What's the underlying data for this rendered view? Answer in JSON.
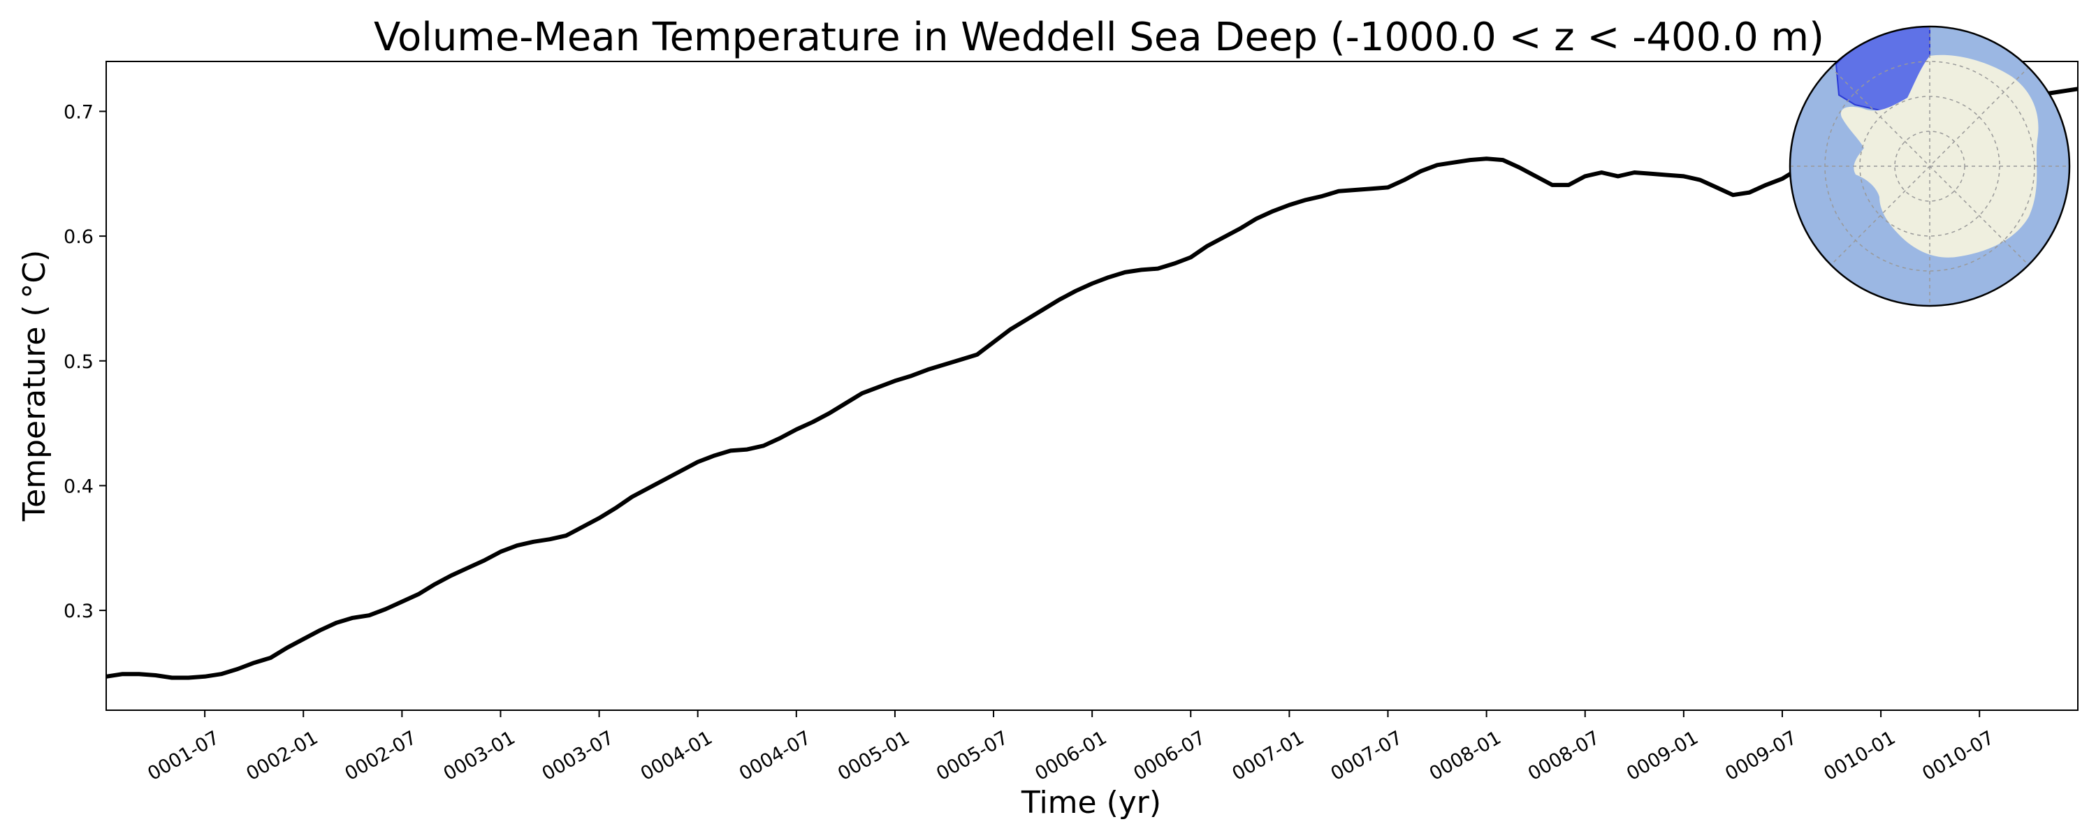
{
  "chart_data": {
    "type": "line",
    "title": "Volume-Mean Temperature in Weddell Sea Deep (-1000.0 < z < -400.0 m)",
    "xlabel": "Time (yr)",
    "ylabel": "Temperature ( °C)",
    "x_range": [
      "0001-01-01",
      "0010-12-31"
    ],
    "ylim": [
      0.22,
      0.74
    ],
    "xticks": [
      "0001-07",
      "0002-01",
      "0002-07",
      "0003-01",
      "0003-07",
      "0004-01",
      "0004-07",
      "0005-01",
      "0005-07",
      "0006-01",
      "0006-07",
      "0007-01",
      "0007-07",
      "0008-01",
      "0008-07",
      "0009-01",
      "0009-07",
      "0010-01",
      "0010-07"
    ],
    "yticks": [
      0.3,
      0.4,
      0.5,
      0.6,
      0.7
    ],
    "grid": false,
    "series": [
      {
        "color": "#000000",
        "x": [
          "0001-01-01",
          "0001-02-01",
          "0001-03-01",
          "0001-04-01",
          "0001-05-01",
          "0001-06-01",
          "0001-07-01",
          "0001-08-01",
          "0001-09-01",
          "0001-10-01",
          "0001-11-01",
          "0001-12-01",
          "0002-01-01",
          "0002-02-01",
          "0002-03-01",
          "0002-04-01",
          "0002-05-01",
          "0002-06-01",
          "0002-07-01",
          "0002-08-01",
          "0002-09-01",
          "0002-10-01",
          "0002-11-01",
          "0002-12-01",
          "0003-01-01",
          "0003-02-01",
          "0003-03-01",
          "0003-04-01",
          "0003-05-01",
          "0003-06-01",
          "0003-07-01",
          "0003-08-01",
          "0003-09-01",
          "0003-10-01",
          "0003-11-01",
          "0003-12-01",
          "0004-01-01",
          "0004-02-01",
          "0004-03-01",
          "0004-04-01",
          "0004-05-01",
          "0004-06-01",
          "0004-07-01",
          "0004-08-01",
          "0004-09-01",
          "0004-10-01",
          "0004-11-01",
          "0004-12-01",
          "0005-01-01",
          "0005-02-01",
          "0005-03-01",
          "0005-04-01",
          "0005-05-01",
          "0005-06-01",
          "0005-07-01",
          "0005-08-01",
          "0005-09-01",
          "0005-10-01",
          "0005-11-01",
          "0005-12-01",
          "0006-01-01",
          "0006-02-01",
          "0006-03-01",
          "0006-04-01",
          "0006-05-01",
          "0006-06-01",
          "0006-07-01",
          "0006-08-01",
          "0006-09-01",
          "0006-10-01",
          "0006-11-01",
          "0006-12-01",
          "0007-01-01",
          "0007-02-01",
          "0007-03-01",
          "0007-04-01",
          "0007-05-01",
          "0007-06-01",
          "0007-07-01",
          "0007-08-01",
          "0007-09-01",
          "0007-10-01",
          "0007-11-01",
          "0007-12-01",
          "0008-01-01",
          "0008-02-01",
          "0008-03-01",
          "0008-04-01",
          "0008-05-01",
          "0008-06-01",
          "0008-07-01",
          "0008-08-01",
          "0008-09-01",
          "0008-10-01",
          "0008-11-01",
          "0008-12-01",
          "0009-01-01",
          "0009-02-01",
          "0009-03-01",
          "0009-04-01",
          "0009-05-01",
          "0009-06-01",
          "0009-07-01",
          "0009-08-01",
          "0009-09-01",
          "0009-10-01",
          "0009-11-01",
          "0009-12-01",
          "0010-01-01",
          "0010-02-01",
          "0010-03-01",
          "0010-04-01",
          "0010-05-01",
          "0010-06-01",
          "0010-07-01",
          "0010-08-01",
          "0010-09-01",
          "0010-10-01",
          "0010-11-01",
          "0010-12-01",
          "0010-12-31"
        ],
        "y": [
          0.247,
          0.249,
          0.249,
          0.248,
          0.246,
          0.246,
          0.247,
          0.249,
          0.253,
          0.258,
          0.262,
          0.27,
          0.277,
          0.284,
          0.29,
          0.294,
          0.296,
          0.301,
          0.307,
          0.313,
          0.321,
          0.328,
          0.334,
          0.34,
          0.347,
          0.352,
          0.355,
          0.357,
          0.36,
          0.367,
          0.374,
          0.382,
          0.391,
          0.398,
          0.405,
          0.412,
          0.419,
          0.424,
          0.428,
          0.429,
          0.432,
          0.438,
          0.445,
          0.451,
          0.458,
          0.466,
          0.474,
          0.479,
          0.484,
          0.488,
          0.493,
          0.497,
          0.501,
          0.505,
          0.515,
          0.525,
          0.533,
          0.541,
          0.549,
          0.556,
          0.562,
          0.567,
          0.571,
          0.573,
          0.574,
          0.578,
          0.583,
          0.592,
          0.599,
          0.606,
          0.614,
          0.62,
          0.625,
          0.629,
          0.632,
          0.636,
          0.637,
          0.638,
          0.639,
          0.645,
          0.652,
          0.657,
          0.659,
          0.661,
          0.662,
          0.661,
          0.655,
          0.648,
          0.641,
          0.641,
          0.648,
          0.651,
          0.648,
          0.651,
          0.65,
          0.649,
          0.648,
          0.645,
          0.639,
          0.633,
          0.635,
          0.641,
          0.646,
          0.654,
          0.663,
          0.672,
          0.679,
          0.685,
          0.691,
          0.696,
          0.699,
          0.701,
          0.704,
          0.703,
          0.702,
          0.706,
          0.709,
          0.712,
          0.714,
          0.716,
          0.718
        ]
      }
    ],
    "inset_map": {
      "ocean_color": "#9bb7e3",
      "land_color": "#efefdf",
      "region_color": "#5566e8",
      "graticule": true
    }
  }
}
